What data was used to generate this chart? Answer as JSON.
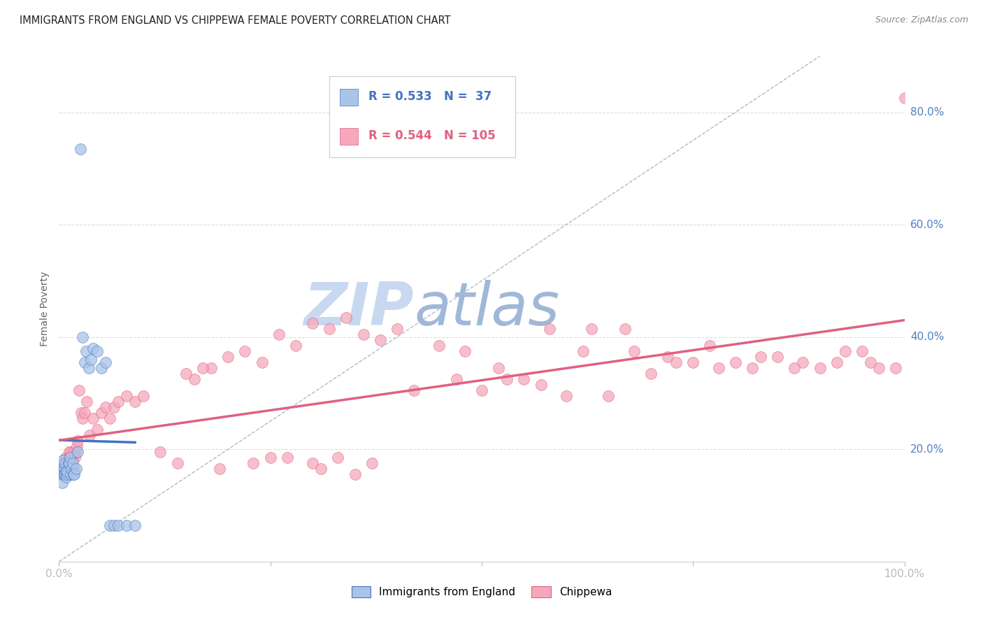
{
  "title": "IMMIGRANTS FROM ENGLAND VS CHIPPEWA FEMALE POVERTY CORRELATION CHART",
  "source": "Source: ZipAtlas.com",
  "ylabel": "Female Poverty",
  "ytick_labels": [
    "20.0%",
    "40.0%",
    "60.0%",
    "80.0%"
  ],
  "ytick_positions": [
    0.2,
    0.4,
    0.6,
    0.8
  ],
  "color_england": "#aac4e8",
  "color_chippewa": "#f5a8bc",
  "color_line_england": "#4472c4",
  "color_line_chippewa": "#e06080",
  "color_diag": "#b0b8c8",
  "color_tick_labels": "#5080c0",
  "watermark_zip": "ZIP",
  "watermark_atlas": "atlas",
  "watermark_color_zip": "#c8d8f0",
  "watermark_color_atlas": "#a0b8d8",
  "background_color": "#ffffff",
  "grid_color": "#d8dce8",
  "xlim": [
    0.0,
    1.0
  ],
  "ylim": [
    0.0,
    0.9
  ],
  "eng_x": [
    0.003,
    0.004,
    0.005,
    0.005,
    0.006,
    0.006,
    0.007,
    0.007,
    0.008,
    0.009,
    0.01,
    0.01,
    0.011,
    0.012,
    0.013,
    0.014,
    0.015,
    0.016,
    0.017,
    0.018,
    0.02,
    0.022,
    0.025,
    0.028,
    0.03,
    0.032,
    0.035,
    0.038,
    0.04,
    0.045,
    0.05,
    0.055,
    0.06,
    0.065,
    0.07,
    0.08,
    0.09
  ],
  "eng_y": [
    0.16,
    0.14,
    0.18,
    0.155,
    0.155,
    0.165,
    0.175,
    0.155,
    0.16,
    0.15,
    0.155,
    0.16,
    0.175,
    0.175,
    0.185,
    0.155,
    0.165,
    0.175,
    0.155,
    0.155,
    0.165,
    0.195,
    0.735,
    0.4,
    0.355,
    0.375,
    0.345,
    0.36,
    0.38,
    0.375,
    0.345,
    0.355,
    0.065,
    0.065,
    0.065,
    0.065,
    0.065
  ],
  "chip_x": [
    0.003,
    0.004,
    0.005,
    0.005,
    0.006,
    0.006,
    0.007,
    0.007,
    0.008,
    0.008,
    0.009,
    0.009,
    0.01,
    0.01,
    0.011,
    0.012,
    0.012,
    0.013,
    0.014,
    0.015,
    0.016,
    0.017,
    0.018,
    0.019,
    0.02,
    0.021,
    0.022,
    0.024,
    0.026,
    0.028,
    0.03,
    0.033,
    0.036,
    0.04,
    0.045,
    0.05,
    0.055,
    0.06,
    0.065,
    0.07,
    0.08,
    0.09,
    0.1,
    0.12,
    0.14,
    0.16,
    0.18,
    0.2,
    0.22,
    0.24,
    0.26,
    0.28,
    0.3,
    0.32,
    0.34,
    0.36,
    0.38,
    0.4,
    0.45,
    0.5,
    0.55,
    0.6,
    0.62,
    0.65,
    0.68,
    0.7,
    0.72,
    0.75,
    0.78,
    0.8,
    0.82,
    0.85,
    0.88,
    0.9,
    0.92,
    0.95,
    0.97,
    1.0,
    0.48,
    0.52,
    0.58,
    0.63,
    0.67,
    0.73,
    0.77,
    0.83,
    0.87,
    0.93,
    0.96,
    0.99,
    0.25,
    0.3,
    0.35,
    0.15,
    0.17,
    0.19,
    0.23,
    0.27,
    0.31,
    0.33,
    0.37,
    0.42,
    0.47,
    0.53,
    0.57
  ],
  "chip_y": [
    0.155,
    0.165,
    0.175,
    0.155,
    0.165,
    0.155,
    0.175,
    0.165,
    0.175,
    0.185,
    0.155,
    0.165,
    0.175,
    0.165,
    0.185,
    0.195,
    0.175,
    0.185,
    0.195,
    0.175,
    0.185,
    0.195,
    0.165,
    0.185,
    0.195,
    0.205,
    0.215,
    0.305,
    0.265,
    0.255,
    0.265,
    0.285,
    0.225,
    0.255,
    0.235,
    0.265,
    0.275,
    0.255,
    0.275,
    0.285,
    0.295,
    0.285,
    0.295,
    0.195,
    0.175,
    0.325,
    0.345,
    0.365,
    0.375,
    0.355,
    0.405,
    0.385,
    0.425,
    0.415,
    0.435,
    0.405,
    0.395,
    0.415,
    0.385,
    0.305,
    0.325,
    0.295,
    0.375,
    0.295,
    0.375,
    0.335,
    0.365,
    0.355,
    0.345,
    0.355,
    0.345,
    0.365,
    0.355,
    0.345,
    0.355,
    0.375,
    0.345,
    0.825,
    0.375,
    0.345,
    0.415,
    0.415,
    0.415,
    0.355,
    0.385,
    0.365,
    0.345,
    0.375,
    0.355,
    0.345,
    0.185,
    0.175,
    0.155,
    0.335,
    0.345,
    0.165,
    0.175,
    0.185,
    0.165,
    0.185,
    0.175,
    0.305,
    0.325,
    0.325,
    0.315
  ]
}
